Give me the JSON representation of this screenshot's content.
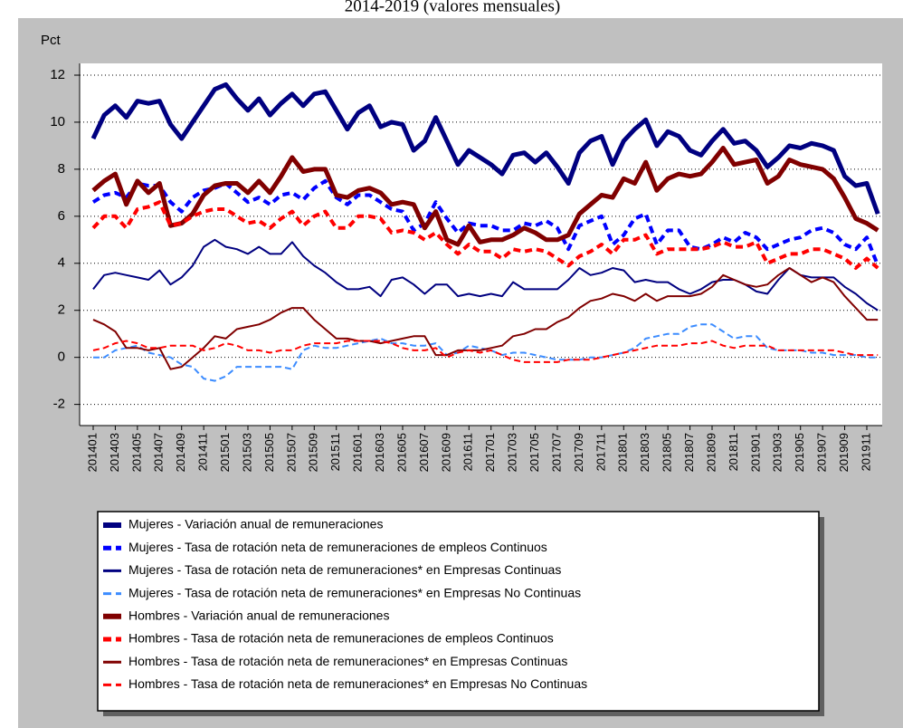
{
  "chart_data": {
    "type": "line",
    "title": "2014-2019 (valores mensuales)",
    "ylabel": "Pct",
    "categories": [
      "201401",
      null,
      "201403",
      null,
      "201405",
      null,
      "201407",
      null,
      "201409",
      null,
      "201411",
      null,
      "201501",
      null,
      "201503",
      null,
      "201505",
      null,
      "201507",
      null,
      "201509",
      null,
      "201511",
      null,
      "201601",
      null,
      "201603",
      null,
      "201605",
      null,
      "201607",
      null,
      "201609",
      null,
      "201611",
      null,
      "201701",
      null,
      "201703",
      null,
      "201705",
      null,
      "201707",
      null,
      "201709",
      null,
      "201711",
      null,
      "201801",
      null,
      "201803",
      null,
      "201805",
      null,
      "201807",
      null,
      "201809",
      null,
      "201811",
      null,
      "201901",
      null,
      "201903",
      null,
      "201905",
      null,
      "201907",
      null,
      "201909",
      null,
      "201911",
      null
    ],
    "ylim": [
      -2.9,
      12.5
    ],
    "yticks": [
      -2,
      0,
      2,
      4,
      6,
      8,
      10,
      12
    ],
    "grid": true,
    "series": [
      {
        "name": "Mujeres - Variación anual de remuneraciones",
        "color": "#000080",
        "width": 5,
        "dash": false,
        "values": [
          9.3,
          10.3,
          10.7,
          10.2,
          10.9,
          10.8,
          10.9,
          9.9,
          9.3,
          10.0,
          10.7,
          11.4,
          11.6,
          11.0,
          10.5,
          11.0,
          10.3,
          10.8,
          11.2,
          10.7,
          11.2,
          11.3,
          10.5,
          9.7,
          10.4,
          10.7,
          9.8,
          10.0,
          9.9,
          8.8,
          9.2,
          10.2,
          9.2,
          8.2,
          8.8,
          8.5,
          8.2,
          7.8,
          8.6,
          8.7,
          8.3,
          8.7,
          8.1,
          7.4,
          8.7,
          9.2,
          9.4,
          8.2,
          9.2,
          9.7,
          10.1,
          9.0,
          9.6,
          9.4,
          8.8,
          8.6,
          9.2,
          9.7,
          9.1,
          9.2,
          8.8,
          8.1,
          8.5,
          9.0,
          8.9,
          9.1,
          9.0,
          8.8,
          7.7,
          7.3,
          7.4,
          6.1
        ]
      },
      {
        "name": "Mujeres - Tasa de rotación neta de remuneraciones de empleos Continuos",
        "color": "#0000ff",
        "width": 4,
        "dash": true,
        "values": [
          6.6,
          6.9,
          7.0,
          6.8,
          7.4,
          7.3,
          7.3,
          6.6,
          6.2,
          6.8,
          7.1,
          7.2,
          7.4,
          7.0,
          6.6,
          6.8,
          6.5,
          6.9,
          7.0,
          6.7,
          7.2,
          7.5,
          6.8,
          6.5,
          6.9,
          6.9,
          6.6,
          6.3,
          6.2,
          5.4,
          5.7,
          6.6,
          5.9,
          5.3,
          5.7,
          5.6,
          5.6,
          5.4,
          5.4,
          5.7,
          5.6,
          5.8,
          5.5,
          4.6,
          5.6,
          5.8,
          6.0,
          4.8,
          5.2,
          5.9,
          6.1,
          4.8,
          5.4,
          5.4,
          4.7,
          4.6,
          4.8,
          5.1,
          4.9,
          5.3,
          5.1,
          4.6,
          4.8,
          5.0,
          5.1,
          5.4,
          5.5,
          5.3,
          4.8,
          4.6,
          5.1,
          3.9
        ]
      },
      {
        "name": "Mujeres - Tasa de rotación neta de remuneraciones* en Empresas Continuas",
        "color": "#000080",
        "width": 2,
        "dash": false,
        "values": [
          2.9,
          3.5,
          3.6,
          3.5,
          3.4,
          3.3,
          3.7,
          3.1,
          3.4,
          3.9,
          4.7,
          5.0,
          4.7,
          4.6,
          4.4,
          4.7,
          4.4,
          4.4,
          4.9,
          4.3,
          3.9,
          3.6,
          3.2,
          2.9,
          2.9,
          3.0,
          2.6,
          3.3,
          3.4,
          3.1,
          2.7,
          3.1,
          3.1,
          2.6,
          2.7,
          2.6,
          2.7,
          2.6,
          3.2,
          2.9,
          2.9,
          2.9,
          2.9,
          3.3,
          3.8,
          3.5,
          3.6,
          3.8,
          3.7,
          3.2,
          3.3,
          3.2,
          3.2,
          2.9,
          2.7,
          2.9,
          3.2,
          3.3,
          3.3,
          3.1,
          2.8,
          2.7,
          3.3,
          3.8,
          3.5,
          3.4,
          3.4,
          3.4,
          3.0,
          2.7,
          2.3,
          2.0
        ]
      },
      {
        "name": "Mujeres - Tasa de rotación neta de remuneraciones* en Empresas No Continuas",
        "color": "#3c8cff",
        "width": 2,
        "dash": true,
        "values": [
          0.0,
          0.0,
          0.3,
          0.4,
          0.5,
          0.2,
          0.1,
          0.0,
          -0.3,
          -0.4,
          -0.9,
          -1.0,
          -0.8,
          -0.4,
          -0.4,
          -0.4,
          -0.4,
          -0.4,
          -0.5,
          0.3,
          0.5,
          0.4,
          0.4,
          0.5,
          0.6,
          0.7,
          0.8,
          0.6,
          0.6,
          0.5,
          0.5,
          0.6,
          0.1,
          0.2,
          0.5,
          0.4,
          0.3,
          0.1,
          0.2,
          0.2,
          0.1,
          0.0,
          -0.1,
          -0.1,
          -0.1,
          0.0,
          0.0,
          0.1,
          0.2,
          0.4,
          0.8,
          0.9,
          1.0,
          1.0,
          1.3,
          1.4,
          1.4,
          1.1,
          0.8,
          0.9,
          0.9,
          0.4,
          0.3,
          0.3,
          0.3,
          0.2,
          0.2,
          0.1,
          0.1,
          0.1,
          0.0,
          0.0
        ]
      },
      {
        "name": "Hombres - Variación anual de remuneraciones",
        "color": "#800000",
        "width": 5,
        "dash": false,
        "values": [
          7.1,
          7.5,
          7.8,
          6.5,
          7.5,
          7.0,
          7.4,
          5.6,
          5.7,
          6.1,
          6.9,
          7.3,
          7.4,
          7.4,
          7.0,
          7.5,
          7.0,
          7.7,
          8.5,
          7.9,
          8.0,
          8.0,
          6.9,
          6.8,
          7.1,
          7.2,
          7.0,
          6.5,
          6.6,
          6.5,
          5.5,
          6.2,
          5.0,
          4.8,
          5.6,
          4.9,
          5.0,
          5.0,
          5.2,
          5.5,
          5.3,
          5.0,
          5.0,
          5.2,
          6.1,
          6.5,
          6.9,
          6.8,
          7.6,
          7.4,
          8.3,
          7.1,
          7.6,
          7.8,
          7.7,
          7.8,
          8.3,
          8.9,
          8.2,
          8.3,
          8.4,
          7.4,
          7.7,
          8.4,
          8.2,
          8.1,
          8.0,
          7.6,
          6.8,
          5.9,
          5.7,
          5.4
        ]
      },
      {
        "name": "Hombres - Tasa de rotación neta de remuneraciones de empleos Continuos",
        "color": "#ff0000",
        "width": 4,
        "dash": true,
        "values": [
          5.5,
          6.0,
          6.0,
          5.5,
          6.3,
          6.4,
          6.6,
          5.6,
          5.7,
          6.0,
          6.2,
          6.3,
          6.3,
          6.0,
          5.7,
          5.8,
          5.5,
          5.9,
          6.2,
          5.6,
          6.0,
          6.2,
          5.5,
          5.5,
          6.0,
          6.0,
          5.9,
          5.3,
          5.4,
          5.3,
          5.0,
          5.3,
          4.8,
          4.4,
          4.8,
          4.5,
          4.5,
          4.2,
          4.6,
          4.5,
          4.6,
          4.5,
          4.2,
          3.9,
          4.3,
          4.5,
          4.8,
          4.4,
          5.0,
          5.0,
          5.2,
          4.4,
          4.6,
          4.6,
          4.6,
          4.6,
          4.7,
          4.9,
          4.7,
          4.7,
          4.9,
          4.0,
          4.2,
          4.4,
          4.4,
          4.6,
          4.6,
          4.4,
          4.2,
          3.8,
          4.2,
          3.8
        ]
      },
      {
        "name": "Hombres - Tasa de rotación neta de remuneraciones* en Empresas Continuas",
        "color": "#800000",
        "width": 2,
        "dash": false,
        "values": [
          1.6,
          1.4,
          1.1,
          0.4,
          0.4,
          0.3,
          0.4,
          -0.5,
          -0.4,
          0.0,
          0.4,
          0.9,
          0.8,
          1.2,
          1.3,
          1.4,
          1.6,
          1.9,
          2.1,
          2.1,
          1.6,
          1.2,
          0.8,
          0.8,
          0.7,
          0.7,
          0.6,
          0.7,
          0.8,
          0.9,
          0.9,
          0.1,
          0.1,
          0.3,
          0.3,
          0.3,
          0.4,
          0.5,
          0.9,
          1.0,
          1.2,
          1.2,
          1.5,
          1.7,
          2.1,
          2.4,
          2.5,
          2.7,
          2.6,
          2.4,
          2.7,
          2.4,
          2.6,
          2.6,
          2.6,
          2.7,
          3.0,
          3.5,
          3.3,
          3.1,
          3.0,
          3.1,
          3.5,
          3.8,
          3.5,
          3.2,
          3.4,
          3.2,
          2.6,
          2.1,
          1.6,
          1.6
        ]
      },
      {
        "name": "Hombres - Tasa de rotación neta de remuneraciones* en Empresas No Continuas",
        "color": "#ff0000",
        "width": 2,
        "dash": true,
        "values": [
          0.3,
          0.4,
          0.6,
          0.7,
          0.6,
          0.4,
          0.4,
          0.5,
          0.5,
          0.5,
          0.3,
          0.4,
          0.6,
          0.5,
          0.3,
          0.3,
          0.2,
          0.3,
          0.3,
          0.5,
          0.6,
          0.6,
          0.6,
          0.7,
          0.7,
          0.7,
          0.7,
          0.6,
          0.4,
          0.3,
          0.3,
          0.4,
          0.0,
          0.2,
          0.3,
          0.2,
          0.3,
          0.1,
          -0.1,
          -0.2,
          -0.2,
          -0.2,
          -0.2,
          -0.1,
          -0.1,
          -0.1,
          0.0,
          0.1,
          0.2,
          0.3,
          0.4,
          0.5,
          0.5,
          0.5,
          0.6,
          0.6,
          0.7,
          0.5,
          0.4,
          0.5,
          0.5,
          0.5,
          0.3,
          0.3,
          0.3,
          0.3,
          0.3,
          0.3,
          0.2,
          0.1,
          0.1,
          0.1
        ]
      }
    ]
  }
}
